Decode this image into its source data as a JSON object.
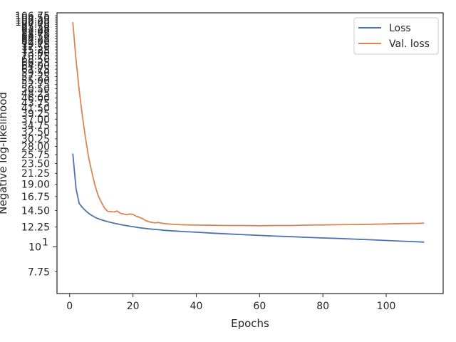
{
  "chart_data": {
    "type": "line",
    "title": "",
    "xlabel": "Epochs",
    "ylabel": "Negative log-likelihood",
    "yscale": "log",
    "xlim": [
      -4,
      118
    ],
    "ylim": [
      6.2,
      110
    ],
    "grid": false,
    "legend": "upper-right",
    "x_ticks": [
      0,
      20,
      40,
      60,
      80,
      100
    ],
    "x_tick_labels": [
      "0",
      "20",
      "40",
      "60",
      "80",
      "100"
    ],
    "y_major_tick": {
      "value": 10,
      "base": "10",
      "exponent": "1"
    },
    "y_minor_ticks": [
      7.75,
      12.25,
      14.5,
      16.75,
      19.0,
      21.25,
      23.5,
      25.75,
      28.0,
      30.25,
      32.5,
      34.75,
      37.0,
      39.25,
      41.5,
      43.75,
      46.0,
      48.25,
      50.5,
      52.75,
      55.0,
      57.25,
      59.5,
      61.75,
      64.0,
      66.25,
      68.5,
      70.75,
      73.0,
      75.25,
      77.5,
      79.75,
      82.0,
      84.25,
      86.5,
      88.75,
      91.0,
      93.25,
      95.5,
      97.75,
      100.0,
      102.25,
      104.5,
      106.75
    ],
    "y_minor_tick_labels": [
      "7.75",
      "12.25",
      "14.50",
      "16.75",
      "19.00",
      "21.25",
      "23.50",
      "25.75",
      "28.00",
      "30.25",
      "32.50",
      "34.75",
      "37.00",
      "39.25",
      "41.50",
      "43.75",
      "46.00",
      "48.25",
      "50.50",
      "52.75",
      "55.00",
      "57.25",
      "59.50",
      "61.75",
      "64.00",
      "66.25",
      "68.50",
      "70.75",
      "73.00",
      "75.25",
      "77.50",
      "79.75",
      "82.00",
      "84.25",
      "86.50",
      "88.75",
      "91.00",
      "93.25",
      "95.50",
      "97.75",
      "100.00",
      "102.25",
      "104.50",
      "106.75"
    ],
    "series": [
      {
        "name": "Loss",
        "color": "#4c72b0",
        "x": [
          1,
          2,
          3,
          4,
          5,
          6,
          7,
          8,
          9,
          10,
          12,
          14,
          16,
          18,
          20,
          22,
          25,
          28,
          30,
          33,
          36,
          40,
          45,
          50,
          55,
          60,
          65,
          70,
          75,
          80,
          85,
          90,
          95,
          100,
          105,
          110,
          112
        ],
        "y": [
          26.0,
          18.2,
          15.6,
          15.0,
          14.5,
          14.1,
          13.8,
          13.55,
          13.35,
          13.2,
          12.95,
          12.75,
          12.58,
          12.43,
          12.3,
          12.17,
          12.03,
          11.92,
          11.85,
          11.77,
          11.7,
          11.62,
          11.51,
          11.42,
          11.33,
          11.25,
          11.17,
          11.1,
          11.03,
          10.96,
          10.9,
          10.83,
          10.76,
          10.68,
          10.6,
          10.53,
          10.5
        ]
      },
      {
        "name": "Val. loss",
        "color": "#dd8452",
        "x": [
          1,
          2,
          3,
          4,
          5,
          6,
          7,
          8,
          9,
          10,
          11,
          12,
          13,
          14,
          15,
          16,
          17,
          18,
          19,
          20,
          21,
          22,
          23,
          24,
          25,
          26,
          27,
          28,
          29,
          30,
          32,
          35,
          40,
          45,
          50,
          55,
          60,
          65,
          70,
          75,
          80,
          85,
          90,
          95,
          100,
          105,
          110,
          112
        ],
        "y": [
          100.0,
          68.0,
          50.0,
          38.5,
          30.5,
          25.0,
          21.5,
          18.8,
          16.9,
          15.8,
          14.9,
          14.4,
          14.35,
          14.3,
          14.45,
          14.1,
          14.0,
          13.9,
          14.0,
          13.95,
          13.7,
          13.55,
          13.35,
          13.1,
          12.95,
          12.85,
          12.78,
          12.85,
          12.75,
          12.7,
          12.62,
          12.55,
          12.5,
          12.48,
          12.45,
          12.45,
          12.42,
          12.45,
          12.45,
          12.5,
          12.52,
          12.55,
          12.58,
          12.6,
          12.65,
          12.7,
          12.72,
          12.75
        ]
      }
    ]
  }
}
